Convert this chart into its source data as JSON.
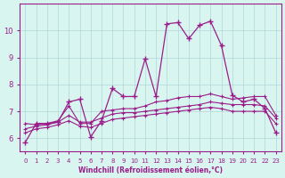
{
  "xlabel": "Windchill (Refroidissement éolien,°C)",
  "bg_color": "#d8f5f0",
  "line_color": "#9b1d8a",
  "grid_color": "#b0d8d8",
  "axis_color": "#9b1d8a",
  "xlim": [
    -0.5,
    23.5
  ],
  "ylim": [
    5.5,
    11
  ],
  "xticks": [
    0,
    1,
    2,
    3,
    4,
    5,
    6,
    7,
    8,
    9,
    10,
    11,
    12,
    13,
    14,
    15,
    16,
    17,
    18,
    19,
    20,
    21,
    22,
    23
  ],
  "yticks": [
    6,
    7,
    8,
    9,
    10
  ],
  "series": {
    "line1": [
      5.85,
      6.55,
      6.55,
      6.6,
      7.35,
      7.45,
      6.05,
      6.65,
      7.85,
      7.55,
      7.55,
      8.95,
      7.55,
      10.25,
      10.3,
      9.7,
      10.2,
      10.35,
      9.45,
      7.6,
      7.35,
      7.45,
      7.1,
      6.2
    ],
    "line2": [
      6.55,
      6.5,
      6.55,
      6.65,
      7.2,
      6.55,
      6.55,
      7.0,
      7.05,
      7.1,
      7.1,
      7.2,
      7.35,
      7.4,
      7.5,
      7.55,
      7.55,
      7.65,
      7.55,
      7.45,
      7.5,
      7.55,
      7.55,
      6.85
    ],
    "line3": [
      6.35,
      6.45,
      6.5,
      6.6,
      6.85,
      6.6,
      6.6,
      6.75,
      6.9,
      6.95,
      6.95,
      7.0,
      7.05,
      7.1,
      7.15,
      7.2,
      7.25,
      7.35,
      7.3,
      7.25,
      7.25,
      7.25,
      7.2,
      6.75
    ],
    "line4": [
      6.2,
      6.35,
      6.4,
      6.5,
      6.65,
      6.45,
      6.4,
      6.55,
      6.7,
      6.75,
      6.8,
      6.85,
      6.9,
      6.95,
      7.0,
      7.05,
      7.1,
      7.15,
      7.1,
      7.0,
      7.0,
      7.0,
      7.0,
      6.55
    ]
  }
}
